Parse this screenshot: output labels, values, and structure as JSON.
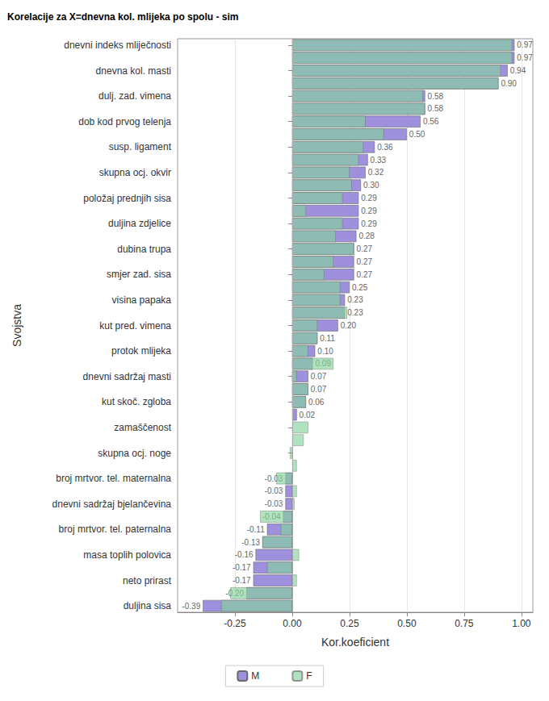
{
  "chart_data": {
    "type": "bar",
    "title": "Korelacije za X=dnevna kol. mlijeka po spolu - sim",
    "x_label": "Kor.koeficient",
    "y_label": "Svojstva",
    "orientation": "horizontal",
    "grid": true,
    "legend": "bottom",
    "categories": [
      "dnevni indeks mliječnosti",
      null,
      "dnevna kol. masti",
      null,
      "dulj. zad. vimena",
      null,
      "dob kod prvog telenja",
      null,
      "susp. ligament",
      null,
      "skupna ocj. okvir",
      null,
      "položaj prednjih sisa",
      null,
      "duljina zdjelice",
      null,
      "dubina trupa",
      null,
      "smjer zad. sisa",
      null,
      "visina papaka",
      null,
      "kut pred. vimena",
      null,
      "protok mlijeka",
      null,
      "dnevni sadržaj masti",
      null,
      "kut skoč. zgloba",
      null,
      "zamaščenost",
      null,
      "skupna ocj. noge",
      null,
      "broj mrtvor. tel. maternalna",
      null,
      "dnevni sadržaj bjelančevina",
      null,
      "broj mrtvor. tel. paternalna",
      null,
      "masa toplih polovica",
      null,
      "neto prirast",
      null,
      "duljina sisa"
    ],
    "series": [
      {
        "name": "M",
        "color": "#9e90dc",
        "data_labels": true,
        "values": [
          0.97,
          0.97,
          0.94,
          0.9,
          0.58,
          0.58,
          0.56,
          0.5,
          0.36,
          0.33,
          0.32,
          0.3,
          0.29,
          0.29,
          0.29,
          0.28,
          0.27,
          0.27,
          0.27,
          0.25,
          0.23,
          0.23,
          0.2,
          0.11,
          0.1,
          0.09,
          0.07,
          0.07,
          0.06,
          0.02,
          null,
          null,
          null,
          null,
          -0.03,
          -0.03,
          -0.03,
          -0.04,
          -0.11,
          -0.13,
          -0.16,
          -0.17,
          -0.17,
          -0.2,
          -0.39
        ],
        "value_labels": [
          "0.97",
          "0.97",
          "0.94",
          "0.90",
          "0.58",
          "0.58",
          "0.56",
          "0.50",
          "0.36",
          "0.33",
          "0.32",
          "0.30",
          "0.29",
          "0.29",
          "0.29",
          "0.28",
          "0.27",
          "0.27",
          "0.27",
          "0.25",
          "0.23",
          "0.23",
          "0.20",
          "0.11",
          "0.10",
          "0.09",
          "0.07",
          "0.07",
          "0.06",
          "0.02",
          null,
          null,
          null,
          null,
          "-0.03",
          "-0.03",
          "-0.03",
          "-0.04",
          "-0.11",
          "-0.13",
          "-0.16",
          "-0.17",
          "-0.17",
          "-0.20",
          "-0.39"
        ]
      },
      {
        "name": "F",
        "color": "#86d39c",
        "data_labels": false,
        "values": [
          0.96,
          0.96,
          0.91,
          0.9,
          0.57,
          0.58,
          0.32,
          0.4,
          0.31,
          0.29,
          0.25,
          0.26,
          0.22,
          0.06,
          0.22,
          0.19,
          0.27,
          0.18,
          0.14,
          0.21,
          0.21,
          0.24,
          0.11,
          0.11,
          0.07,
          0.18,
          0.02,
          0.07,
          0.06,
          null,
          0.07,
          0.05,
          -0.01,
          0.02,
          -0.07,
          0.02,
          0.01,
          -0.14,
          -0.05,
          -0.13,
          0.03,
          -0.11,
          0.02,
          -0.27,
          -0.31
        ]
      }
    ],
    "xlim": [
      -0.5,
      1.05
    ],
    "xticks": [
      -0.25,
      {
        "value": 0,
        "label": "0.00"
      },
      0.25,
      {
        "value": 0.5,
        "label": "0.50"
      },
      0.75,
      {
        "value": 1,
        "label": "1.00"
      }
    ]
  }
}
